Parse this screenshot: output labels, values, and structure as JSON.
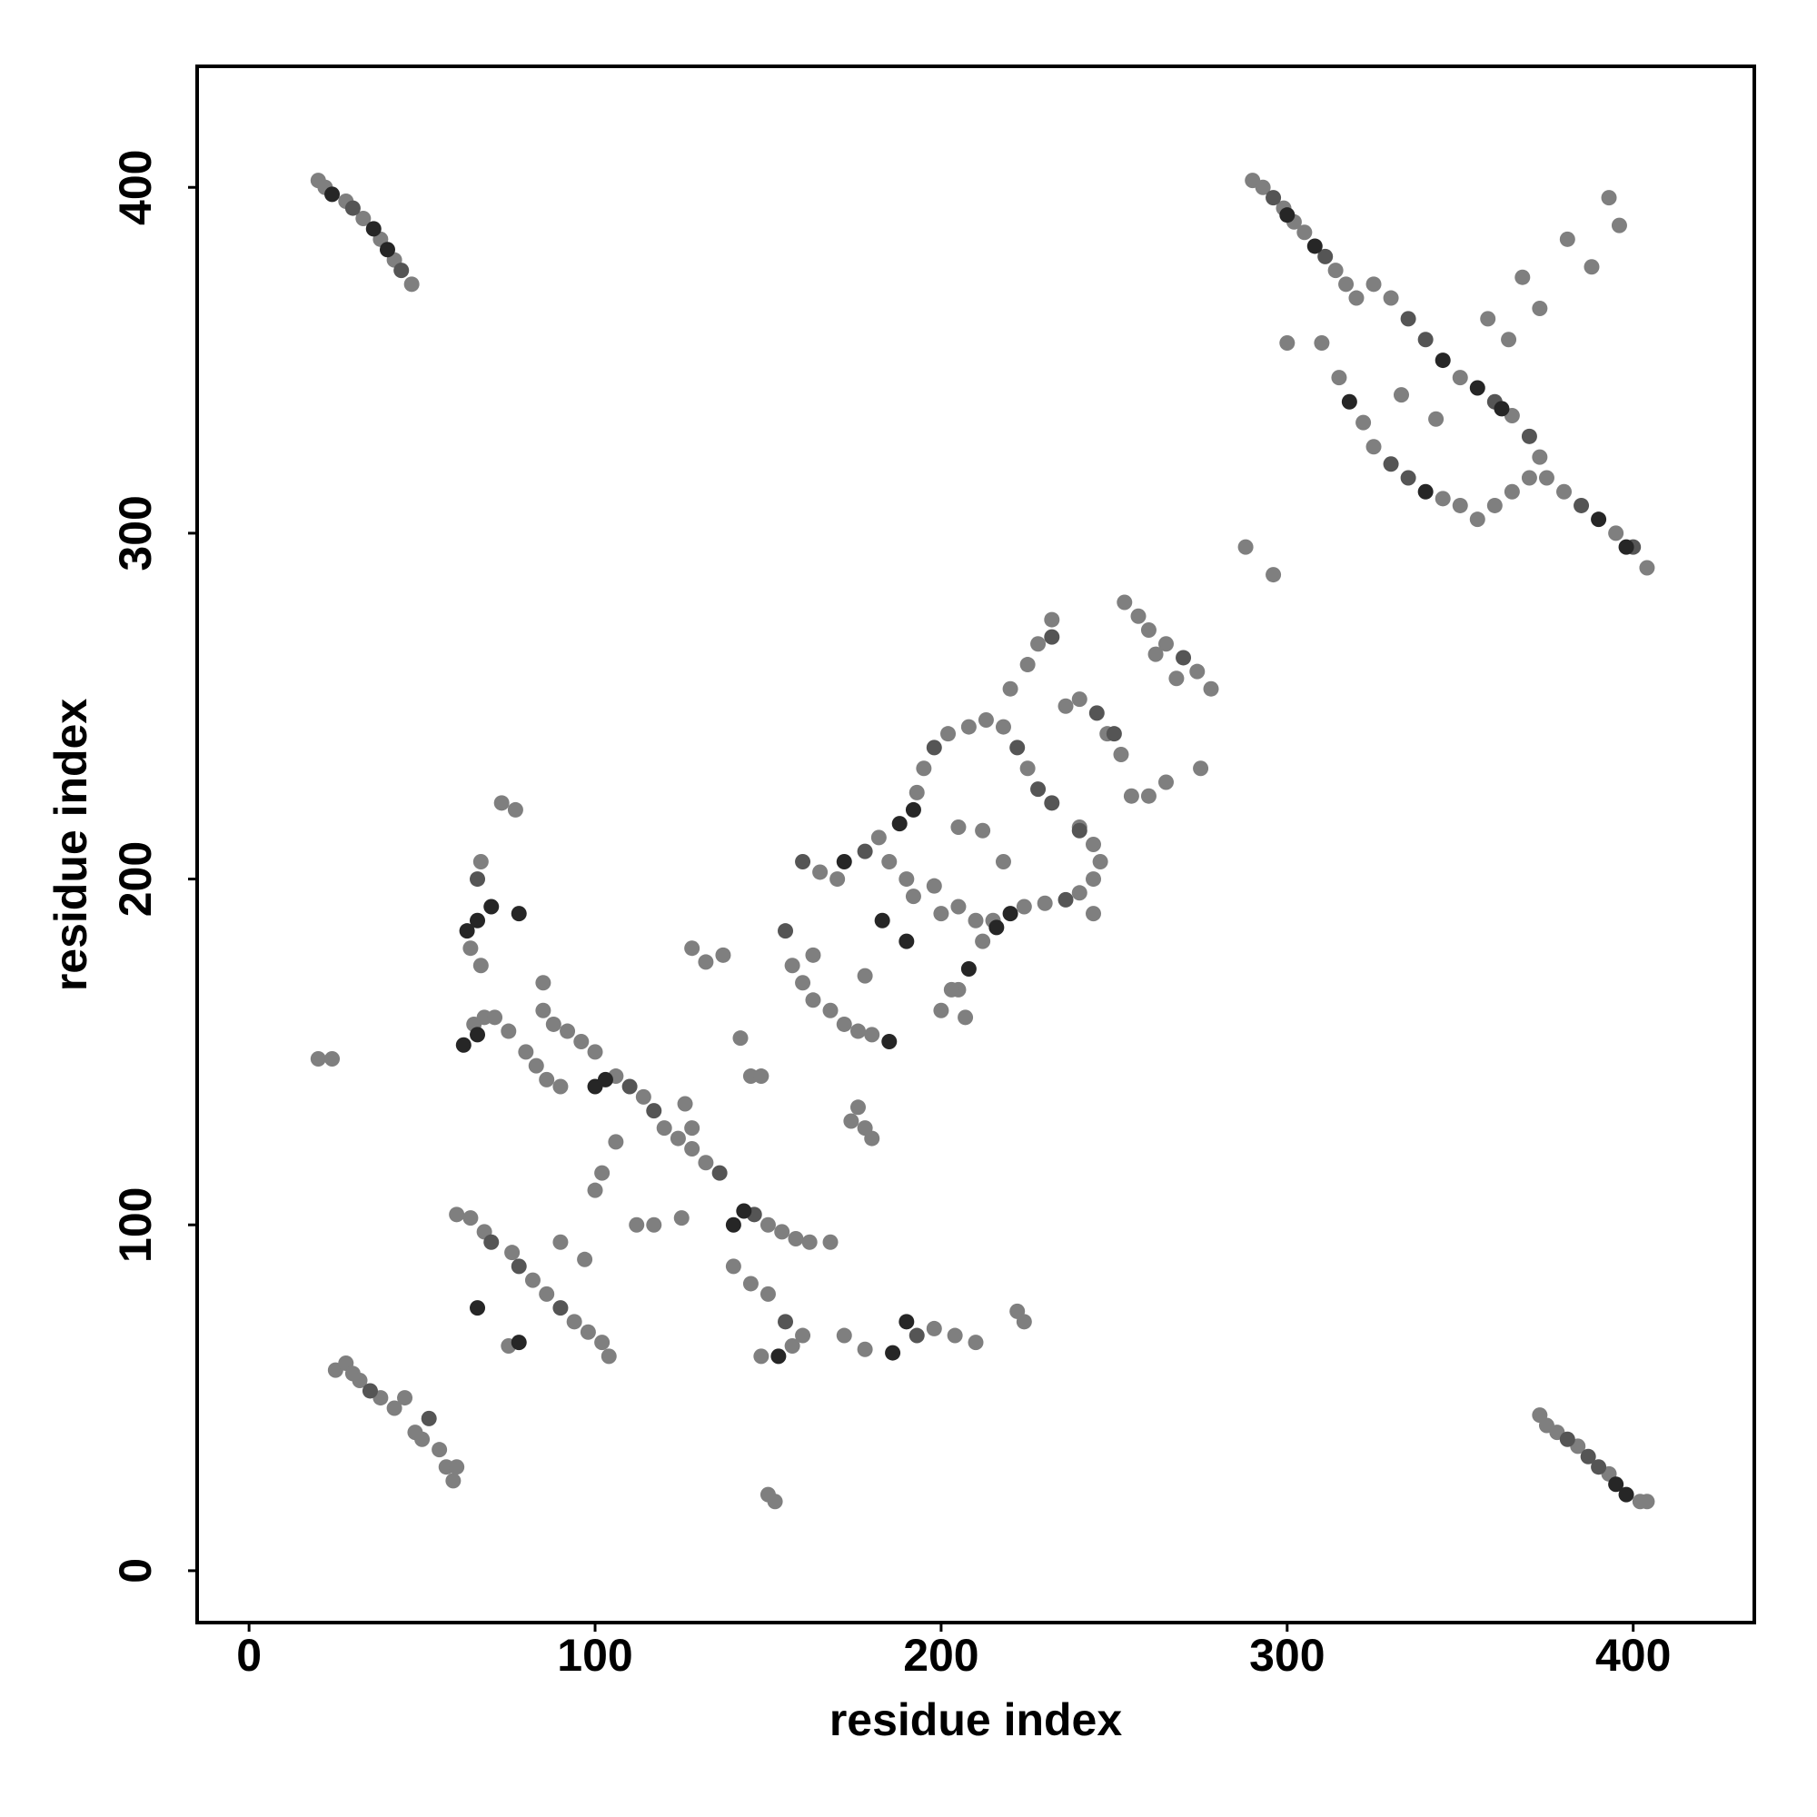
{
  "chart_data": {
    "type": "scatter",
    "x_label": "residue index",
    "y_label": "residue index",
    "xlim": [
      -15,
      435
    ],
    "ylim": [
      -15,
      435
    ],
    "xticks": [
      0,
      100,
      200,
      300,
      400
    ],
    "yticks": [
      0,
      100,
      200,
      300,
      400
    ],
    "grid": false,
    "series": [
      {
        "color": "#7f7f7f",
        "x": [
          20,
          22,
          28,
          33,
          38,
          42,
          47,
          25,
          28,
          30,
          32,
          38,
          42,
          45,
          48,
          50,
          55,
          57,
          59,
          60,
          373,
          375,
          378,
          384,
          393,
          402,
          404,
          290,
          293,
          299,
          302,
          305,
          314,
          317,
          320,
          325,
          330,
          350,
          365,
          373,
          375,
          380,
          395,
          404,
          310,
          315,
          322,
          325,
          345,
          350,
          355,
          360,
          365,
          370,
          393,
          396,
          381,
          388,
          368,
          373,
          358,
          364,
          333,
          343,
          300,
          288,
          296,
          65,
          68,
          71,
          75,
          80,
          83,
          86,
          90,
          85,
          88,
          92,
          96,
          100,
          106,
          114,
          120,
          124,
          128,
          132,
          150,
          154,
          158,
          162,
          168,
          85,
          64,
          67,
          67,
          73,
          77,
          20,
          24,
          60,
          64,
          68,
          76,
          82,
          86,
          94,
          98,
          102,
          104,
          75,
          100,
          102,
          106,
          112,
          117,
          125,
          126,
          128,
          128,
          132,
          137,
          142,
          145,
          148,
          140,
          145,
          150,
          157,
          160,
          148,
          150,
          152,
          172,
          178,
          198,
          204,
          210,
          222,
          224,
          90,
          97,
          157,
          160,
          163,
          168,
          172,
          176,
          180,
          163,
          174,
          178,
          180,
          176,
          178,
          165,
          170,
          182,
          193,
          195,
          202,
          208,
          213,
          218,
          225,
          244,
          246,
          244,
          240,
          230,
          224,
          212,
          205,
          203,
          200,
          207,
          185,
          190,
          192,
          198,
          200,
          205,
          210,
          215,
          205,
          212,
          218,
          220,
          225,
          228,
          232,
          253,
          257,
          260,
          265,
          274,
          278,
          262,
          268,
          240,
          248,
          252,
          255,
          260,
          265,
          275,
          236,
          244,
          240
        ],
        "y": [
          402,
          400,
          396,
          391,
          385,
          379,
          372,
          58,
          60,
          57,
          55,
          50,
          47,
          50,
          40,
          38,
          35,
          30,
          26,
          30,
          45,
          42,
          40,
          36,
          28,
          20,
          20,
          402,
          400,
          394,
          390,
          387,
          376,
          372,
          368,
          372,
          368,
          345,
          334,
          322,
          316,
          312,
          300,
          290,
          355,
          345,
          332,
          325,
          310,
          308,
          304,
          308,
          312,
          316,
          397,
          389,
          385,
          377,
          374,
          365,
          362,
          356,
          340,
          333,
          355,
          296,
          288,
          158,
          160,
          160,
          156,
          150,
          146,
          142,
          140,
          162,
          158,
          156,
          153,
          150,
          143,
          137,
          128,
          125,
          122,
          118,
          100,
          98,
          96,
          95,
          95,
          170,
          180,
          175,
          205,
          222,
          220,
          148,
          148,
          103,
          102,
          98,
          92,
          84,
          80,
          72,
          69,
          66,
          62,
          65,
          110,
          115,
          124,
          100,
          100,
          102,
          135,
          128,
          180,
          176,
          178,
          154,
          143,
          143,
          88,
          83,
          80,
          65,
          68,
          62,
          22,
          20,
          68,
          64,
          70,
          68,
          66,
          75,
          72,
          95,
          90,
          175,
          170,
          165,
          162,
          158,
          156,
          155,
          178,
          130,
          128,
          125,
          134,
          172,
          202,
          200,
          212,
          225,
          232,
          242,
          244,
          246,
          244,
          232,
          210,
          205,
          200,
          196,
          193,
          192,
          182,
          168,
          168,
          162,
          160,
          205,
          200,
          195,
          198,
          190,
          192,
          188,
          188,
          215,
          214,
          205,
          255,
          262,
          268,
          275,
          280,
          276,
          272,
          268,
          260,
          255,
          265,
          258,
          252,
          242,
          236,
          224,
          224,
          228,
          232,
          250,
          190,
          215
        ]
      },
      {
        "color": "#555555",
        "x": [
          30,
          44,
          296,
          311,
          335,
          340,
          370,
          385,
          400,
          381,
          387,
          390,
          35,
          52,
          70,
          78,
          90,
          110,
          117,
          136,
          146,
          222,
          228,
          232,
          240,
          236,
          245,
          250,
          270,
          232,
          155,
          160,
          178,
          198,
          193,
          155,
          66,
          330,
          335,
          360
        ],
        "y": [
          394,
          376,
          397,
          380,
          362,
          356,
          328,
          308,
          296,
          38,
          33,
          30,
          52,
          44,
          95,
          88,
          76,
          140,
          133,
          115,
          103,
          238,
          226,
          222,
          214,
          194,
          248,
          242,
          264,
          270,
          185,
          205,
          208,
          238,
          68,
          72,
          200,
          320,
          316,
          338
        ]
      },
      {
        "color": "#262626",
        "x": [
          24,
          36,
          40,
          300,
          308,
          345,
          355,
          362,
          390,
          398,
          395,
          398,
          63,
          66,
          70,
          78,
          62,
          66,
          100,
          103,
          140,
          143,
          188,
          192,
          216,
          220,
          208,
          186,
          190,
          153,
          66,
          78,
          183,
          190,
          185,
          172,
          340,
          318
        ],
        "y": [
          398,
          388,
          382,
          392,
          383,
          350,
          342,
          336,
          304,
          296,
          25,
          22,
          185,
          188,
          192,
          190,
          152,
          155,
          140,
          142,
          100,
          104,
          216,
          220,
          186,
          190,
          174,
          63,
          72,
          62,
          76,
          66,
          188,
          182,
          153,
          205,
          312,
          338
        ]
      }
    ]
  }
}
